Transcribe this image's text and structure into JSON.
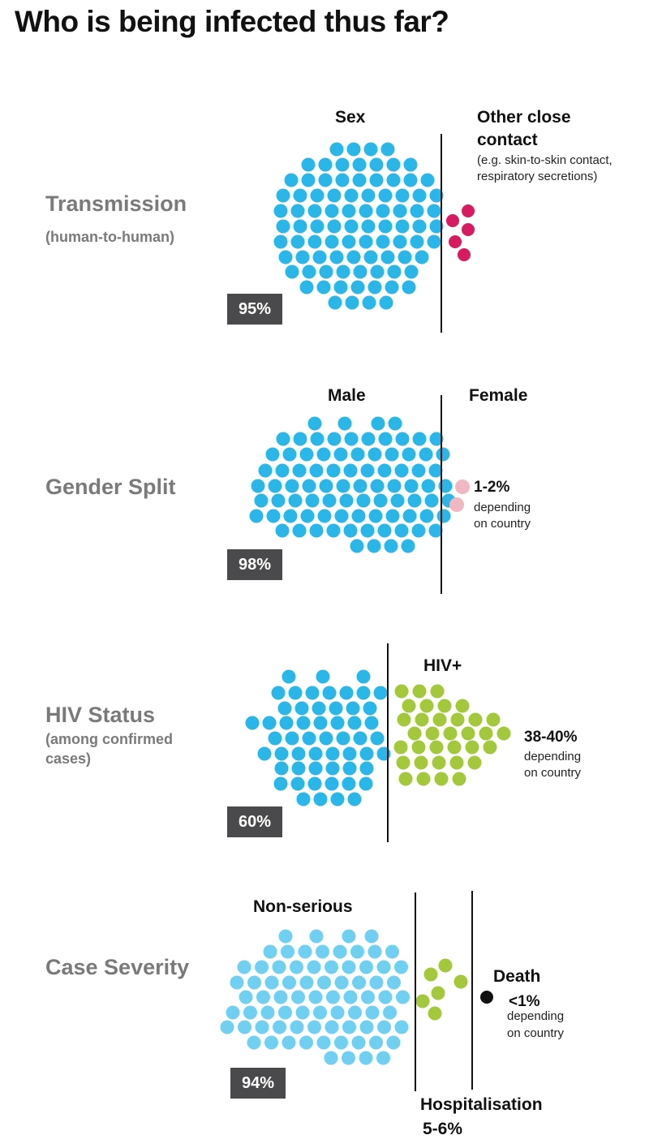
{
  "title": "Who is being infected  thus far?",
  "colors": {
    "blue": "#29b6e8",
    "light_blue": "#6fd0f2",
    "magenta": "#d81b60",
    "pink": "#f0b8c2",
    "green": "#a3c93a",
    "black": "#111111",
    "badge": "#4a4a4d",
    "section_gray": "#7a7a7a"
  },
  "sections": [
    {
      "key": "transmission",
      "title": "Transmission",
      "subtitle": "(human-to-human)",
      "main_label": "Sex",
      "main_percent": "95%",
      "other_label_line1": "Other close",
      "other_label_line2": "contact",
      "other_note_line1": "(e.g. skin-to-skin contact,",
      "other_note_line2": "respiratory secretions)",
      "main_share": 95,
      "other_share": 5
    },
    {
      "key": "gender",
      "title": "Gender Split",
      "main_label": "Male",
      "main_percent": "98%",
      "other_label": "Female",
      "other_percent": "1-2%",
      "other_note_line1": "depending",
      "other_note_line2": "on country",
      "main_share": 98,
      "other_share": 2
    },
    {
      "key": "hiv",
      "title": "HIV Status",
      "subtitle_line1": "(among confirmed",
      "subtitle_line2": "cases)",
      "main_percent": "60%",
      "other_label": "HIV+",
      "other_percent": "38-40%",
      "other_note_line1": "depending",
      "other_note_line2": "on country",
      "main_share": 60,
      "other_share": 40
    },
    {
      "key": "severity",
      "title": "Case Severity",
      "main_label": "Non-serious",
      "main_percent": "94%",
      "hosp_label": "Hospitalisation",
      "hosp_percent": "5-6%",
      "death_label": "Death",
      "death_percent": "<1%",
      "death_note_line1": "depending",
      "death_note_line2": "on country",
      "main_share": 94,
      "hosp_share": 5,
      "death_share": 1
    }
  ]
}
